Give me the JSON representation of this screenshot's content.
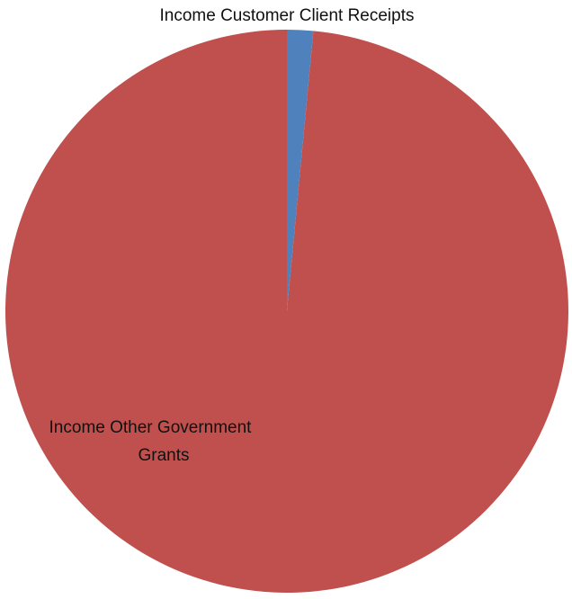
{
  "chart_data": {
    "type": "pie",
    "title": "",
    "series": [
      {
        "values": [
          1.5,
          98.5
        ]
      }
    ],
    "categories": [
      "Income Customer Client Receipts",
      "Income Other Government Grants"
    ],
    "slices": [
      {
        "label": "Income Customer Client Receipts",
        "value": 1.5,
        "color": "#4f81bd"
      },
      {
        "label": "Income Other Government Grants",
        "value": 98.5,
        "color": "#c0504d"
      }
    ],
    "legend": "none",
    "data_labels": [
      "Income Customer Client Receipts",
      "Income Other Government",
      "Grants"
    ]
  }
}
